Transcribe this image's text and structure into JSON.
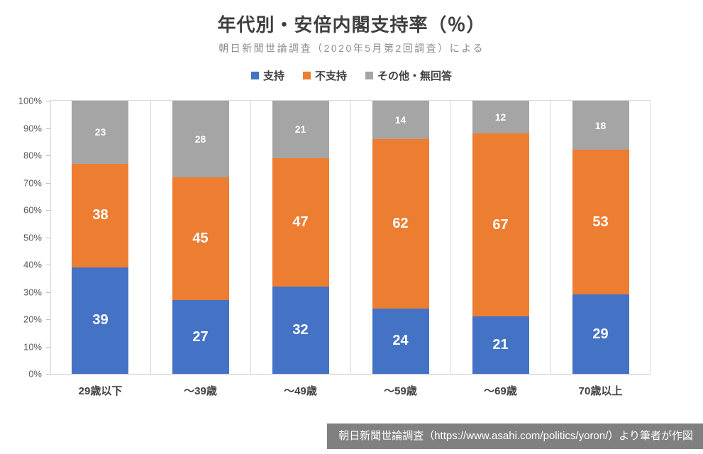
{
  "title": "年代別・安倍内閣支持率（％）",
  "subtitle": "朝日新聞世論調査（2020年5月第2回調査）による",
  "legend": [
    {
      "label": "支持",
      "color": "#4472C4"
    },
    {
      "label": "不支持",
      "color": "#ED7D31"
    },
    {
      "label": "その他・無回答",
      "color": "#A5A5A5"
    }
  ],
  "source_caption": "朝日新聞世論調査（https://www.asahi.com/politics/yoron/）より筆者が作図",
  "chart_data": {
    "type": "bar",
    "stacked": true,
    "title": "年代別・安倍内閣支持率（％）",
    "subtitle": "朝日新聞世論調査（2020年5月第2回調査）による",
    "categories": [
      "29歳以下",
      "～39歳",
      "～49歳",
      "～59歳",
      "～69歳",
      "70歳以上"
    ],
    "series": [
      {
        "name": "支持",
        "color": "#4472C4",
        "values": [
          39,
          27,
          32,
          24,
          21,
          29
        ]
      },
      {
        "name": "不支持",
        "color": "#ED7D31",
        "values": [
          38,
          45,
          47,
          62,
          67,
          53
        ]
      },
      {
        "name": "その他・無回答",
        "color": "#A5A5A5",
        "values": [
          23,
          28,
          21,
          14,
          12,
          18
        ]
      }
    ],
    "xlabel": "",
    "ylabel": "",
    "ylim": [
      0,
      100
    ],
    "yticks": [
      "0%",
      "10%",
      "20%",
      "30%",
      "40%",
      "50%",
      "60%",
      "70%",
      "80%",
      "90%",
      "100%"
    ],
    "legend_position": "top",
    "grid": "vertical-category-separators-only",
    "data_labels": "inside-center-white"
  },
  "colors": {
    "support": "#4472C4",
    "oppose": "#ED7D31",
    "other": "#A5A5A5",
    "gridline": "#D9D9D9",
    "axis_text": "#595959",
    "title_text": "#3F3F3F",
    "subtitle_text": "#8C8C8C",
    "caption_bg": "#808080",
    "caption_text": "#FFFFFF"
  }
}
